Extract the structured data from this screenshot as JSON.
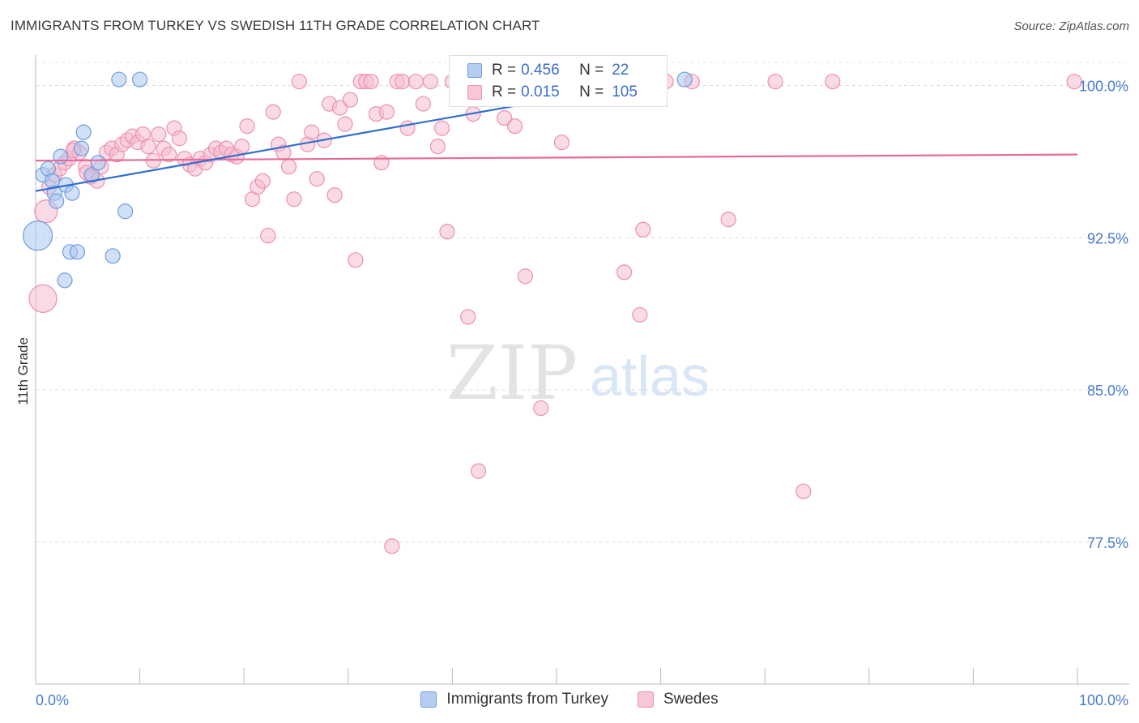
{
  "header": {
    "title": "IMMIGRANTS FROM TURKEY VS SWEDISH 11TH GRADE CORRELATION CHART",
    "source": "Source: ZipAtlas.com"
  },
  "watermark": {
    "zip": "ZIP",
    "atlas": "atlas"
  },
  "legend": {
    "series1": {
      "r_label": "R =",
      "r_value": "0.456",
      "n_label": "N =",
      "n_value": "22"
    },
    "series2": {
      "r_label": "R =",
      "r_value": "0.015",
      "n_label": "N =",
      "n_value": "105"
    }
  },
  "bottom_legend": {
    "series1": "Immigrants from Turkey",
    "series2": "Swedes"
  },
  "colors": {
    "blue_fill": "#aac6ee",
    "blue_stroke": "#6f9de0",
    "blue_line": "#2f6fd0",
    "pink_fill": "#f6bdd0",
    "pink_stroke": "#ec8fb0",
    "pink_line": "#e8699a",
    "axis_text": "#4a7bd0"
  },
  "chart_data": {
    "type": "scatter",
    "title": "IMMIGRANTS FROM TURKEY VS SWEDISH 11TH GRADE CORRELATION CHART",
    "xlabel": "",
    "ylabel": "11th Grade",
    "xlim": [
      0,
      100
    ],
    "ylim": [
      70.5,
      101.5
    ],
    "x_tick_labels": [
      "0.0%",
      "100.0%"
    ],
    "y_ticks": [
      77.5,
      85.0,
      92.5,
      100.0
    ],
    "y_tick_labels": [
      "77.5%",
      "85.0%",
      "92.5%",
      "100.0%"
    ],
    "grid": true,
    "legend_position": "top-center",
    "series": [
      {
        "name": "Immigrants from Turkey",
        "r": 0.456,
        "n": 22,
        "trend": {
          "x": [
            0,
            57
          ],
          "y": [
            94.8,
            100.0
          ]
        },
        "points": [
          {
            "x": 0.2,
            "y": 92.6,
            "s": 18
          },
          {
            "x": 0.7,
            "y": 95.6,
            "s": 9
          },
          {
            "x": 1.2,
            "y": 95.9,
            "s": 9
          },
          {
            "x": 1.6,
            "y": 95.3,
            "s": 9
          },
          {
            "x": 1.8,
            "y": 94.7,
            "s": 9
          },
          {
            "x": 2.0,
            "y": 94.3,
            "s": 9
          },
          {
            "x": 2.4,
            "y": 96.5,
            "s": 9
          },
          {
            "x": 2.9,
            "y": 95.1,
            "s": 9
          },
          {
            "x": 3.5,
            "y": 94.7,
            "s": 9
          },
          {
            "x": 3.3,
            "y": 91.8,
            "s": 9
          },
          {
            "x": 4.0,
            "y": 91.8,
            "s": 9
          },
          {
            "x": 4.4,
            "y": 96.9,
            "s": 9
          },
          {
            "x": 4.6,
            "y": 97.7,
            "s": 9
          },
          {
            "x": 2.8,
            "y": 90.4,
            "s": 9
          },
          {
            "x": 5.4,
            "y": 95.6,
            "s": 9
          },
          {
            "x": 6.0,
            "y": 96.2,
            "s": 9
          },
          {
            "x": 7.4,
            "y": 91.6,
            "s": 9
          },
          {
            "x": 8.6,
            "y": 93.8,
            "s": 9
          },
          {
            "x": 8.0,
            "y": 100.3,
            "s": 9
          },
          {
            "x": 10.0,
            "y": 100.3,
            "s": 9
          },
          {
            "x": 59.0,
            "y": 100.3,
            "s": 9
          },
          {
            "x": 62.3,
            "y": 100.3,
            "s": 9
          }
        ]
      },
      {
        "name": "Swedes",
        "r": 0.015,
        "n": 105,
        "trend": {
          "x": [
            0,
            100
          ],
          "y": [
            96.3,
            96.6
          ]
        },
        "points": [
          {
            "x": 0.7,
            "y": 89.5,
            "s": 17
          },
          {
            "x": 1.0,
            "y": 93.8,
            "s": 14
          },
          {
            "x": 1.3,
            "y": 95.0,
            "s": 9
          },
          {
            "x": 1.8,
            "y": 95.6,
            "s": 9
          },
          {
            "x": 2.3,
            "y": 95.9,
            "s": 9
          },
          {
            "x": 2.8,
            "y": 96.2,
            "s": 9
          },
          {
            "x": 3.2,
            "y": 96.4,
            "s": 9
          },
          {
            "x": 3.7,
            "y": 96.9,
            "s": 9
          },
          {
            "x": 4.2,
            "y": 96.7,
            "s": 9
          },
          {
            "x": 4.8,
            "y": 96.0,
            "s": 9
          },
          {
            "x": 5.3,
            "y": 95.5,
            "s": 9
          },
          {
            "x": 5.9,
            "y": 95.3,
            "s": 9
          },
          {
            "x": 6.3,
            "y": 96.0,
            "s": 9
          },
          {
            "x": 6.8,
            "y": 96.7,
            "s": 9
          },
          {
            "x": 7.3,
            "y": 96.9,
            "s": 9
          },
          {
            "x": 7.8,
            "y": 96.6,
            "s": 9
          },
          {
            "x": 8.3,
            "y": 97.1,
            "s": 9
          },
          {
            "x": 8.8,
            "y": 97.3,
            "s": 9
          },
          {
            "x": 9.3,
            "y": 97.5,
            "s": 9
          },
          {
            "x": 9.8,
            "y": 97.2,
            "s": 9
          },
          {
            "x": 10.3,
            "y": 97.6,
            "s": 9
          },
          {
            "x": 10.8,
            "y": 97.0,
            "s": 9
          },
          {
            "x": 11.3,
            "y": 96.3,
            "s": 9
          },
          {
            "x": 11.8,
            "y": 97.6,
            "s": 9
          },
          {
            "x": 12.3,
            "y": 96.9,
            "s": 9
          },
          {
            "x": 12.8,
            "y": 96.6,
            "s": 9
          },
          {
            "x": 13.3,
            "y": 97.9,
            "s": 9
          },
          {
            "x": 13.8,
            "y": 97.4,
            "s": 9
          },
          {
            "x": 14.3,
            "y": 96.4,
            "s": 9
          },
          {
            "x": 14.8,
            "y": 96.1,
            "s": 9
          },
          {
            "x": 15.3,
            "y": 95.9,
            "s": 9
          },
          {
            "x": 15.8,
            "y": 96.4,
            "s": 9
          },
          {
            "x": 16.3,
            "y": 96.2,
            "s": 9
          },
          {
            "x": 16.8,
            "y": 96.6,
            "s": 9
          },
          {
            "x": 17.3,
            "y": 96.9,
            "s": 9
          },
          {
            "x": 17.8,
            "y": 96.7,
            "s": 9
          },
          {
            "x": 18.3,
            "y": 96.9,
            "s": 9
          },
          {
            "x": 18.8,
            "y": 96.6,
            "s": 9
          },
          {
            "x": 19.3,
            "y": 96.5,
            "s": 9
          },
          {
            "x": 19.8,
            "y": 97.0,
            "s": 9
          },
          {
            "x": 20.3,
            "y": 98.0,
            "s": 9
          },
          {
            "x": 20.8,
            "y": 94.4,
            "s": 9
          },
          {
            "x": 21.3,
            "y": 95.0,
            "s": 9
          },
          {
            "x": 21.8,
            "y": 95.3,
            "s": 9
          },
          {
            "x": 22.3,
            "y": 92.6,
            "s": 9
          },
          {
            "x": 22.8,
            "y": 98.7,
            "s": 9
          },
          {
            "x": 23.3,
            "y": 97.1,
            "s": 9
          },
          {
            "x": 23.8,
            "y": 96.7,
            "s": 9
          },
          {
            "x": 24.3,
            "y": 96.0,
            "s": 9
          },
          {
            "x": 24.8,
            "y": 94.4,
            "s": 9
          },
          {
            "x": 25.3,
            "y": 100.2,
            "s": 9
          },
          {
            "x": 26.1,
            "y": 97.1,
            "s": 9
          },
          {
            "x": 26.5,
            "y": 97.7,
            "s": 9
          },
          {
            "x": 27.0,
            "y": 95.4,
            "s": 9
          },
          {
            "x": 27.7,
            "y": 97.3,
            "s": 9
          },
          {
            "x": 28.2,
            "y": 99.1,
            "s": 9
          },
          {
            "x": 28.7,
            "y": 94.6,
            "s": 9
          },
          {
            "x": 29.2,
            "y": 98.9,
            "s": 9
          },
          {
            "x": 29.7,
            "y": 98.1,
            "s": 9
          },
          {
            "x": 30.2,
            "y": 99.3,
            "s": 9
          },
          {
            "x": 30.7,
            "y": 91.4,
            "s": 9
          },
          {
            "x": 31.2,
            "y": 100.2,
            "s": 9
          },
          {
            "x": 31.7,
            "y": 100.2,
            "s": 9
          },
          {
            "x": 32.2,
            "y": 100.2,
            "s": 9
          },
          {
            "x": 32.7,
            "y": 98.6,
            "s": 9
          },
          {
            "x": 33.2,
            "y": 96.2,
            "s": 9
          },
          {
            "x": 33.7,
            "y": 98.7,
            "s": 9
          },
          {
            "x": 34.2,
            "y": 77.3,
            "s": 9
          },
          {
            "x": 34.7,
            "y": 100.2,
            "s": 9
          },
          {
            "x": 35.2,
            "y": 100.2,
            "s": 9
          },
          {
            "x": 35.7,
            "y": 97.9,
            "s": 9
          },
          {
            "x": 36.5,
            "y": 100.2,
            "s": 9
          },
          {
            "x": 37.2,
            "y": 99.1,
            "s": 9
          },
          {
            "x": 37.9,
            "y": 100.2,
            "s": 9
          },
          {
            "x": 38.6,
            "y": 97.0,
            "s": 9
          },
          {
            "x": 39.0,
            "y": 97.9,
            "s": 9
          },
          {
            "x": 39.5,
            "y": 92.8,
            "s": 9
          },
          {
            "x": 40.0,
            "y": 100.2,
            "s": 9
          },
          {
            "x": 41.0,
            "y": 100.2,
            "s": 9
          },
          {
            "x": 41.5,
            "y": 88.6,
            "s": 9
          },
          {
            "x": 42.0,
            "y": 98.6,
            "s": 9
          },
          {
            "x": 42.5,
            "y": 81.0,
            "s": 9
          },
          {
            "x": 43.0,
            "y": 100.2,
            "s": 9
          },
          {
            "x": 44.0,
            "y": 100.2,
            "s": 9
          },
          {
            "x": 45.0,
            "y": 98.4,
            "s": 9
          },
          {
            "x": 46.0,
            "y": 98.0,
            "s": 9
          },
          {
            "x": 47.0,
            "y": 90.6,
            "s": 9
          },
          {
            "x": 47.5,
            "y": 100.2,
            "s": 9
          },
          {
            "x": 48.5,
            "y": 84.1,
            "s": 9
          },
          {
            "x": 49.5,
            "y": 100.2,
            "s": 9
          },
          {
            "x": 50.5,
            "y": 97.2,
            "s": 9
          },
          {
            "x": 51.5,
            "y": 100.2,
            "s": 9
          },
          {
            "x": 53.0,
            "y": 100.2,
            "s": 9
          },
          {
            "x": 56.5,
            "y": 90.8,
            "s": 9
          },
          {
            "x": 58.0,
            "y": 88.7,
            "s": 9
          },
          {
            "x": 58.3,
            "y": 92.9,
            "s": 9
          },
          {
            "x": 60.5,
            "y": 100.2,
            "s": 9
          },
          {
            "x": 63.0,
            "y": 100.2,
            "s": 9
          },
          {
            "x": 66.5,
            "y": 93.4,
            "s": 9
          },
          {
            "x": 71.0,
            "y": 100.2,
            "s": 9
          },
          {
            "x": 73.7,
            "y": 80.0,
            "s": 9
          },
          {
            "x": 76.5,
            "y": 100.2,
            "s": 9
          },
          {
            "x": 99.7,
            "y": 100.2,
            "s": 9
          },
          {
            "x": 4.9,
            "y": 95.7,
            "s": 9
          },
          {
            "x": 3.6,
            "y": 96.8,
            "s": 9
          }
        ]
      }
    ]
  }
}
